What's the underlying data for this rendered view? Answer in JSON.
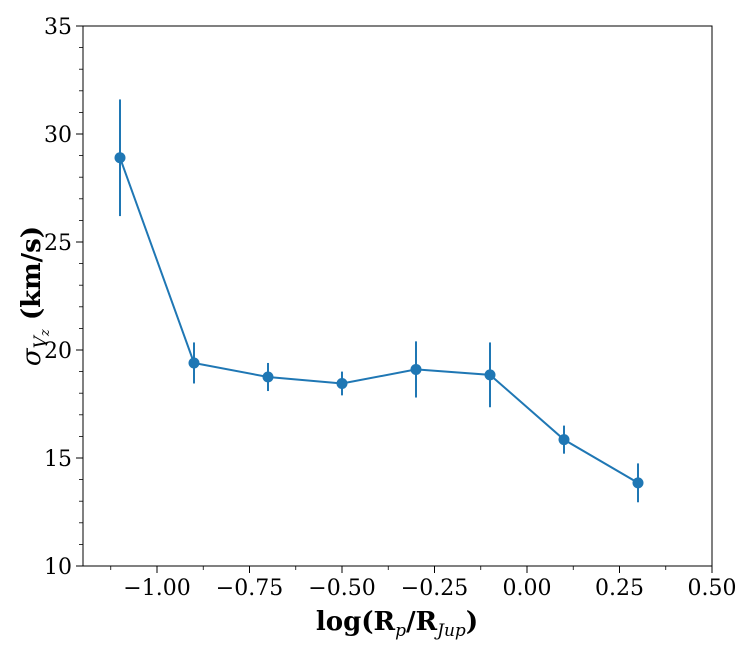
{
  "chart_data": {
    "type": "line",
    "title": "",
    "xlabel": {
      "prefix": "log(R",
      "sub1": "p",
      "mid": "/R",
      "sub2": "Jup",
      "suffix": ")"
    },
    "ylabel": {
      "symbol": "σ",
      "sub": "V",
      "subsub": "z",
      "units": " (km/s)"
    },
    "xlim": [
      -1.2,
      0.5
    ],
    "ylim": [
      10,
      35
    ],
    "xticks": [
      -1.0,
      -0.75,
      -0.5,
      -0.25,
      0.0,
      0.25,
      0.5
    ],
    "xtick_labels": [
      "−1.00",
      "−0.75",
      "−0.50",
      "−0.25",
      "0.00",
      "0.25",
      "0.50"
    ],
    "yticks": [
      10,
      15,
      20,
      25,
      30,
      35
    ],
    "ytick_labels": [
      "10",
      "15",
      "20",
      "25",
      "30",
      "35"
    ],
    "grid": false,
    "color": "#1f77b4",
    "series": [
      {
        "x": [
          -1.1,
          -0.9,
          -0.7,
          -0.5,
          -0.3,
          -0.1,
          0.1,
          0.3
        ],
        "y": [
          28.9,
          19.4,
          18.75,
          18.45,
          19.1,
          18.85,
          15.85,
          13.85
        ],
        "yerr": [
          2.7,
          0.95,
          0.65,
          0.55,
          1.3,
          1.5,
          0.65,
          0.9
        ]
      }
    ]
  }
}
